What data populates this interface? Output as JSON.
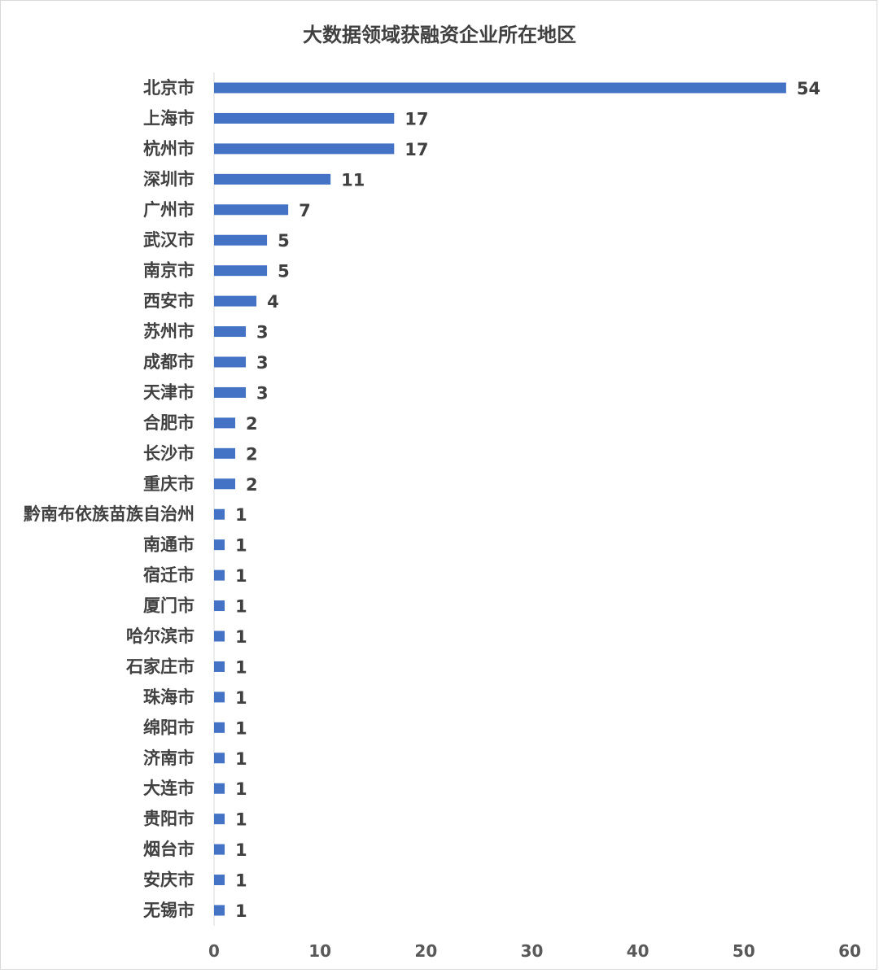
{
  "chart_data": {
    "type": "bar",
    "orientation": "horizontal",
    "title": "大数据领域获融资企业所在地区",
    "xlabel": "",
    "ylabel": "",
    "categories": [
      "北京市",
      "上海市",
      "杭州市",
      "深圳市",
      "广州市",
      "武汉市",
      "南京市",
      "西安市",
      "苏州市",
      "成都市",
      "天津市",
      "合肥市",
      "长沙市",
      "重庆市",
      "黔南布依族苗族自治州",
      "南通市",
      "宿迁市",
      "厦门市",
      "哈尔滨市",
      "石家庄市",
      "珠海市",
      "绵阳市",
      "济南市",
      "大连市",
      "贵阳市",
      "烟台市",
      "安庆市",
      "无锡市"
    ],
    "values": [
      54,
      17,
      17,
      11,
      7,
      5,
      5,
      4,
      3,
      3,
      3,
      2,
      2,
      2,
      1,
      1,
      1,
      1,
      1,
      1,
      1,
      1,
      1,
      1,
      1,
      1,
      1,
      1
    ],
    "value_labels": [
      "54",
      "17",
      "17",
      "11",
      "7",
      "5",
      "5",
      "4",
      "3",
      "3",
      "3",
      "2",
      "2",
      "2",
      "1",
      "1",
      "1",
      "1",
      "1",
      "1",
      "1",
      "1",
      "1",
      "1",
      "1",
      "1",
      "1",
      "1"
    ],
    "xlim": [
      0,
      60
    ],
    "ticks": [
      0,
      10,
      20,
      30,
      40,
      50,
      60
    ],
    "tick_labels": [
      "0",
      "10",
      "20",
      "30",
      "40",
      "50",
      "60"
    ],
    "grid": false,
    "legend": "none",
    "colors": {
      "bar": "#4472c4",
      "axis": "#d9d9d9",
      "text": "#404040"
    }
  }
}
